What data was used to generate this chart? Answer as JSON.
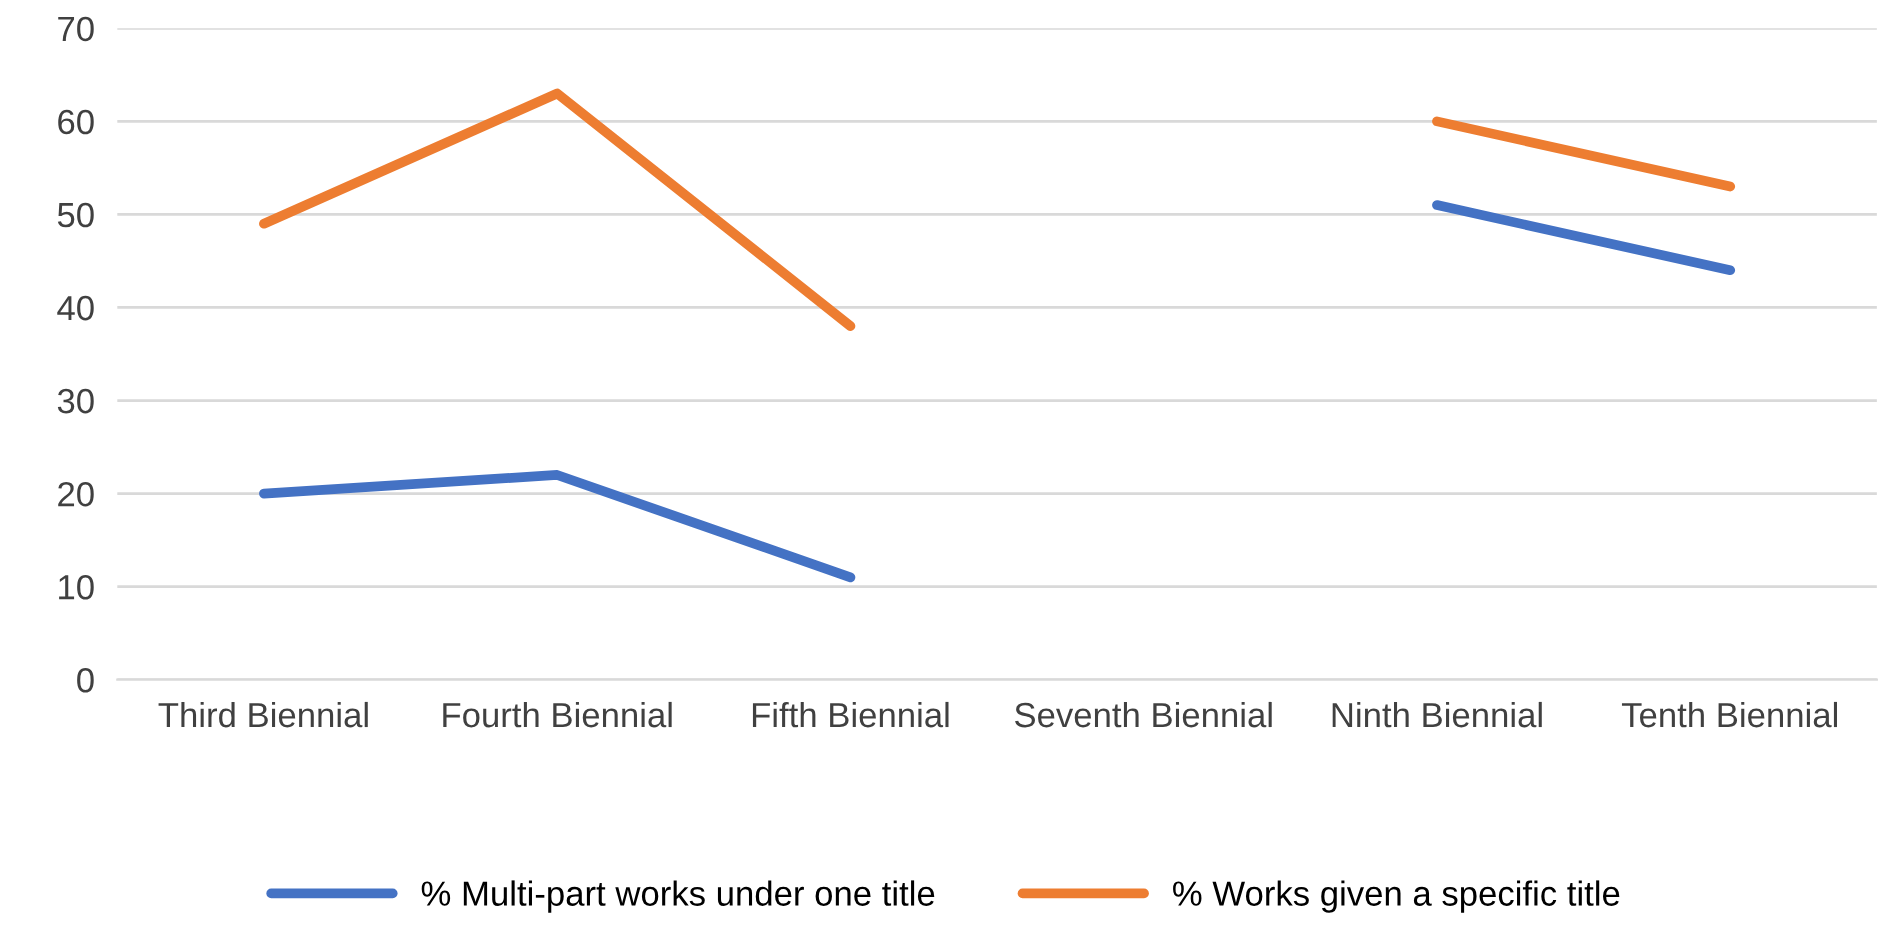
{
  "chart_data": {
    "type": "line",
    "categories": [
      "Third Biennial",
      "Fourth Biennial",
      "Fifth Biennial",
      "Seventh Biennial",
      "Ninth Biennial",
      "Tenth Biennial"
    ],
    "series": [
      {
        "name": "% Multi-part works under one title",
        "color": "#4472c4",
        "values": [
          20,
          22,
          11,
          null,
          51,
          44
        ]
      },
      {
        "name": "% Works given a specific title",
        "color": "#ed7d31",
        "values": [
          49,
          63,
          38,
          null,
          60,
          53
        ]
      }
    ],
    "ylim": [
      0,
      70
    ],
    "yticks": [
      0,
      10,
      20,
      30,
      40,
      50,
      60,
      70
    ],
    "grid": "y",
    "legend": "bottom",
    "marker": "none",
    "line_style": "solid"
  }
}
